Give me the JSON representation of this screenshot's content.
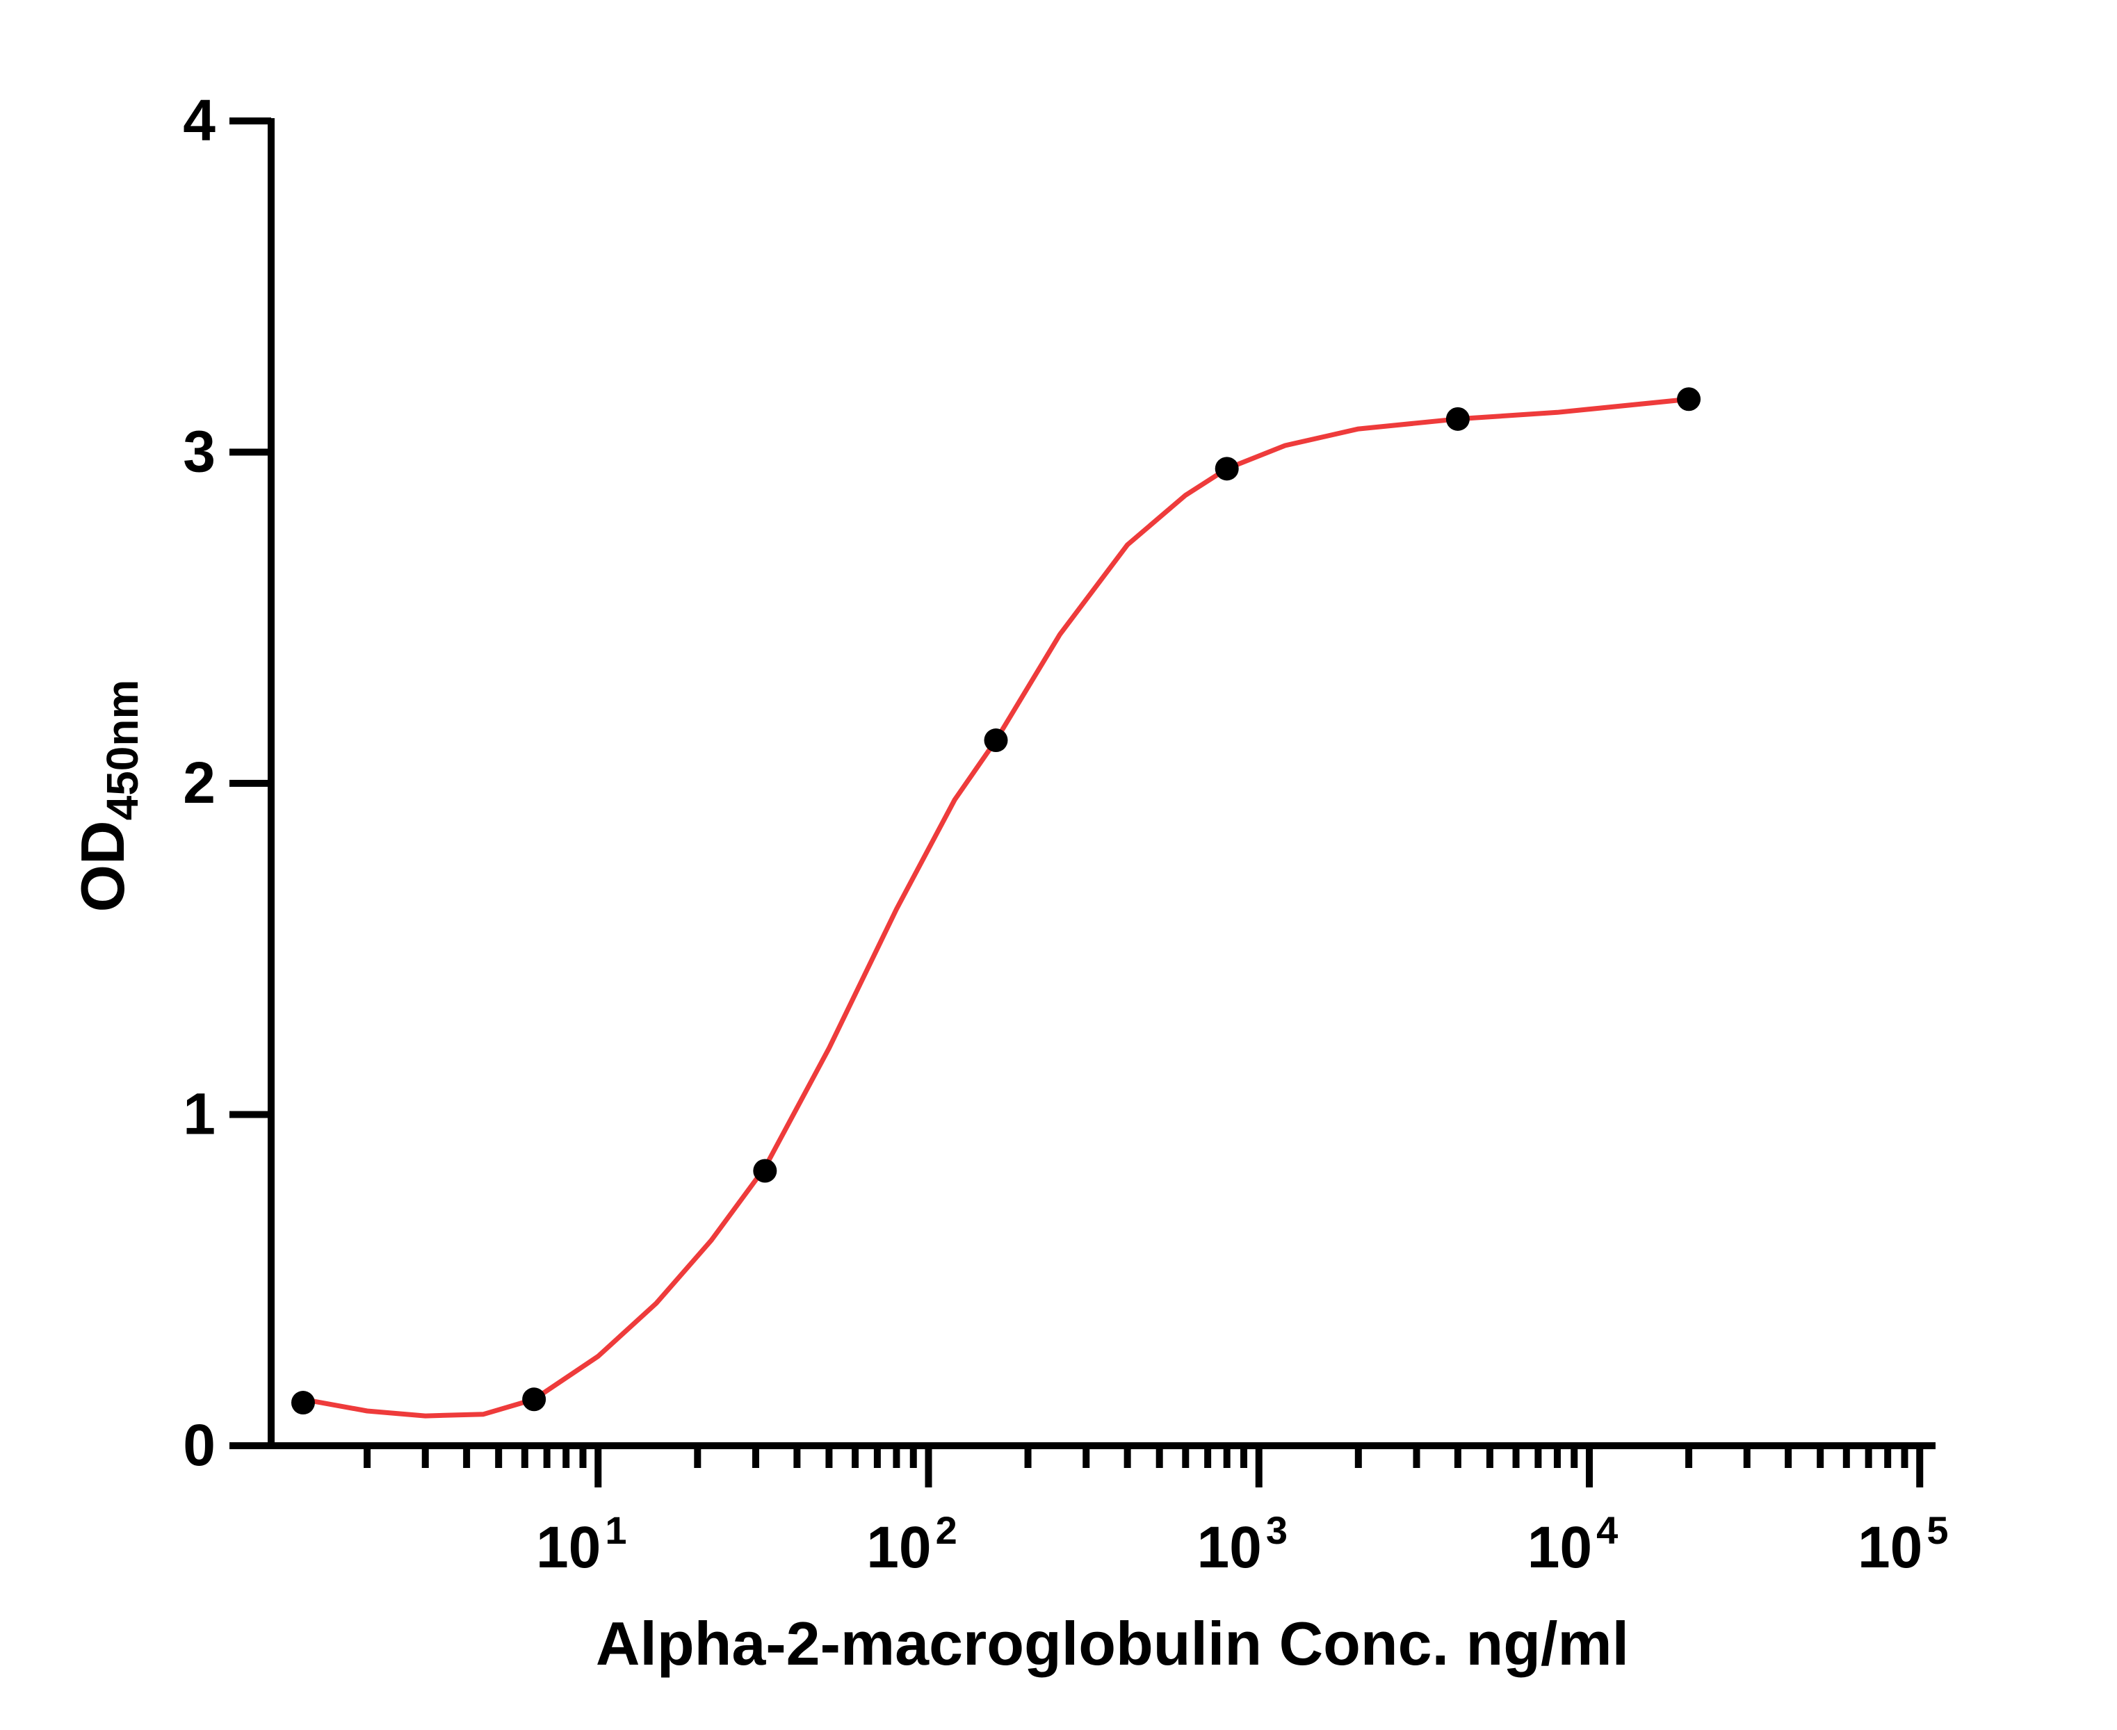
{
  "chart_data": {
    "type": "scatter",
    "title": "",
    "xlabel": "Alpha-2-macroglobulin Conc. ng/ml",
    "ylabel": "OD",
    "ylabel_subscript": "450nm",
    "x_scale": "log",
    "xlim": [
      1,
      100000
    ],
    "ylim": [
      0,
      4
    ],
    "y_ticks": [
      "0",
      "1",
      "2",
      "3",
      "4"
    ],
    "x_tick_labels": [
      {
        "base": "10",
        "exp": "1",
        "value": 10
      },
      {
        "base": "10",
        "exp": "2",
        "value": 100
      },
      {
        "base": "10",
        "exp": "3",
        "value": 1000
      },
      {
        "base": "10",
        "exp": "4",
        "value": 10000
      },
      {
        "base": "10",
        "exp": "5",
        "value": 100000
      }
    ],
    "grid": false,
    "legend": "none",
    "series": [
      {
        "points": [
          {
            "x": 1.28,
            "y": 0.13
          },
          {
            "x": 6.4,
            "y": 0.14
          },
          {
            "x": 32,
            "y": 0.83
          },
          {
            "x": 160,
            "y": 2.13
          },
          {
            "x": 800,
            "y": 2.95
          },
          {
            "x": 4000,
            "y": 3.1
          },
          {
            "x": 20000,
            "y": 3.16
          }
        ],
        "marker_color": "#000000"
      }
    ],
    "fit_curve": {
      "color": "#ee3b3b",
      "points": [
        {
          "x": 1.28,
          "y": 0.14
        },
        {
          "x": 2,
          "y": 0.105
        },
        {
          "x": 3,
          "y": 0.09
        },
        {
          "x": 4.5,
          "y": 0.095
        },
        {
          "x": 6.4,
          "y": 0.14
        },
        {
          "x": 10,
          "y": 0.27
        },
        {
          "x": 15,
          "y": 0.43
        },
        {
          "x": 22,
          "y": 0.62
        },
        {
          "x": 32,
          "y": 0.84
        },
        {
          "x": 50,
          "y": 1.2
        },
        {
          "x": 80,
          "y": 1.62
        },
        {
          "x": 120,
          "y": 1.95
        },
        {
          "x": 160,
          "y": 2.13
        },
        {
          "x": 250,
          "y": 2.45
        },
        {
          "x": 400,
          "y": 2.72
        },
        {
          "x": 600,
          "y": 2.87
        },
        {
          "x": 800,
          "y": 2.95
        },
        {
          "x": 1200,
          "y": 3.02
        },
        {
          "x": 2000,
          "y": 3.07
        },
        {
          "x": 4000,
          "y": 3.1
        },
        {
          "x": 8000,
          "y": 3.12
        },
        {
          "x": 20000,
          "y": 3.16
        }
      ]
    }
  }
}
